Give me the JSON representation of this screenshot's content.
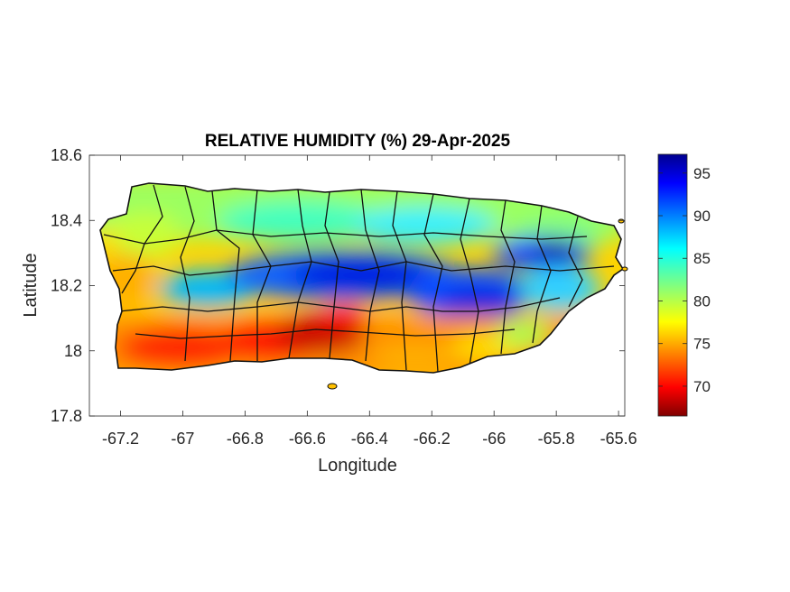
{
  "chart_data": {
    "type": "heatmap",
    "title": "RELATIVE HUMIDITY (%) 29-Apr-2025",
    "xlabel": "Longitude",
    "ylabel": "Latitude",
    "xlim": [
      -67.3,
      -65.58
    ],
    "ylim": [
      17.8,
      18.6
    ],
    "x_ticks": [
      -67.2,
      -67,
      -66.8,
      -66.6,
      -66.4,
      -66.2,
      -66,
      -65.8,
      -65.6
    ],
    "x_tick_labels": [
      "-67.2",
      "-67",
      "-66.8",
      "-66.6",
      "-66.4",
      "-66.2",
      "-66",
      "-65.8",
      "-65.6"
    ],
    "y_ticks": [
      17.8,
      18,
      18.2,
      18.4,
      18.6
    ],
    "y_tick_labels": [
      "17.8",
      "18",
      "18.2",
      "18.4",
      "18.6"
    ],
    "colorbar": {
      "colormap": "jet",
      "range": [
        66.5,
        97.2
      ],
      "ticks": [
        70,
        75,
        80,
        85,
        90,
        95
      ],
      "tick_labels": [
        "70",
        "75",
        "80",
        "85",
        "90",
        "95"
      ]
    },
    "grid": false,
    "regions": {
      "south_coast": "low humidity (~67-75%)",
      "central_band_lat_18.2": "high humidity (~90-97%)",
      "northeast_-65.8": "high humidity (~93-97%)",
      "north_coast": "moderate humidity (~80-86%)"
    }
  }
}
